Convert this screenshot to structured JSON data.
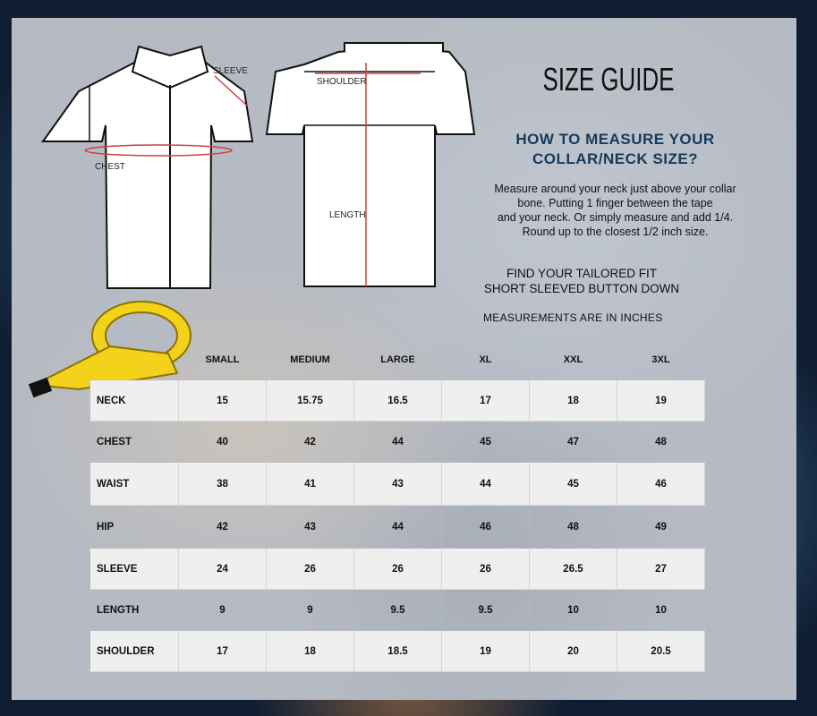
{
  "title": "SIZE GUIDE",
  "howto_heading": [
    "HOW TO MEASURE YOUR",
    "COLLAR/NECK SIZE?"
  ],
  "description": [
    "Measure around your neck just above your collar",
    "bone. Putting 1 finger between the tape",
    "and your neck. Or simply measure and add 1/4.",
    "Round up to the closest 1/2 inch size."
  ],
  "fit": [
    "FIND YOUR TAILORED FIT",
    "SHORT SLEEVED BUTTON DOWN"
  ],
  "units_note": "MEASUREMENTS ARE IN INCHES",
  "diagram_labels": {
    "sleeve": "SLEEVE",
    "chest": "CHEST",
    "shoulder": "SHOULDER",
    "length": "LENGTH"
  },
  "colors": {
    "heading": "#173a5a",
    "measure_line": "#d04040",
    "tape": "#f2d21b"
  },
  "table": {
    "headers": [
      "SMALL",
      "MEDIUM",
      "LARGE",
      "XL",
      "XXL",
      "3XL"
    ],
    "rows": [
      {
        "label": "NECK",
        "values": [
          "15",
          "15.75",
          "16.5",
          "17",
          "18",
          "19"
        ]
      },
      {
        "label": "CHEST",
        "values": [
          "40",
          "42",
          "44",
          "45",
          "47",
          "48"
        ]
      },
      {
        "label": "WAIST",
        "values": [
          "38",
          "41",
          "43",
          "44",
          "45",
          "46"
        ]
      },
      {
        "label": "HIP",
        "values": [
          "42",
          "43",
          "44",
          "46",
          "48",
          "49"
        ]
      },
      {
        "label": "SLEEVE",
        "values": [
          "24",
          "26",
          "26",
          "26",
          "26.5",
          "27"
        ]
      },
      {
        "label": "LENGTH",
        "values": [
          "9",
          "9",
          "9.5",
          "9.5",
          "10",
          "10"
        ]
      },
      {
        "label": "SHOULDER",
        "values": [
          "17",
          "18",
          "18.5",
          "19",
          "20",
          "20.5"
        ]
      }
    ]
  }
}
